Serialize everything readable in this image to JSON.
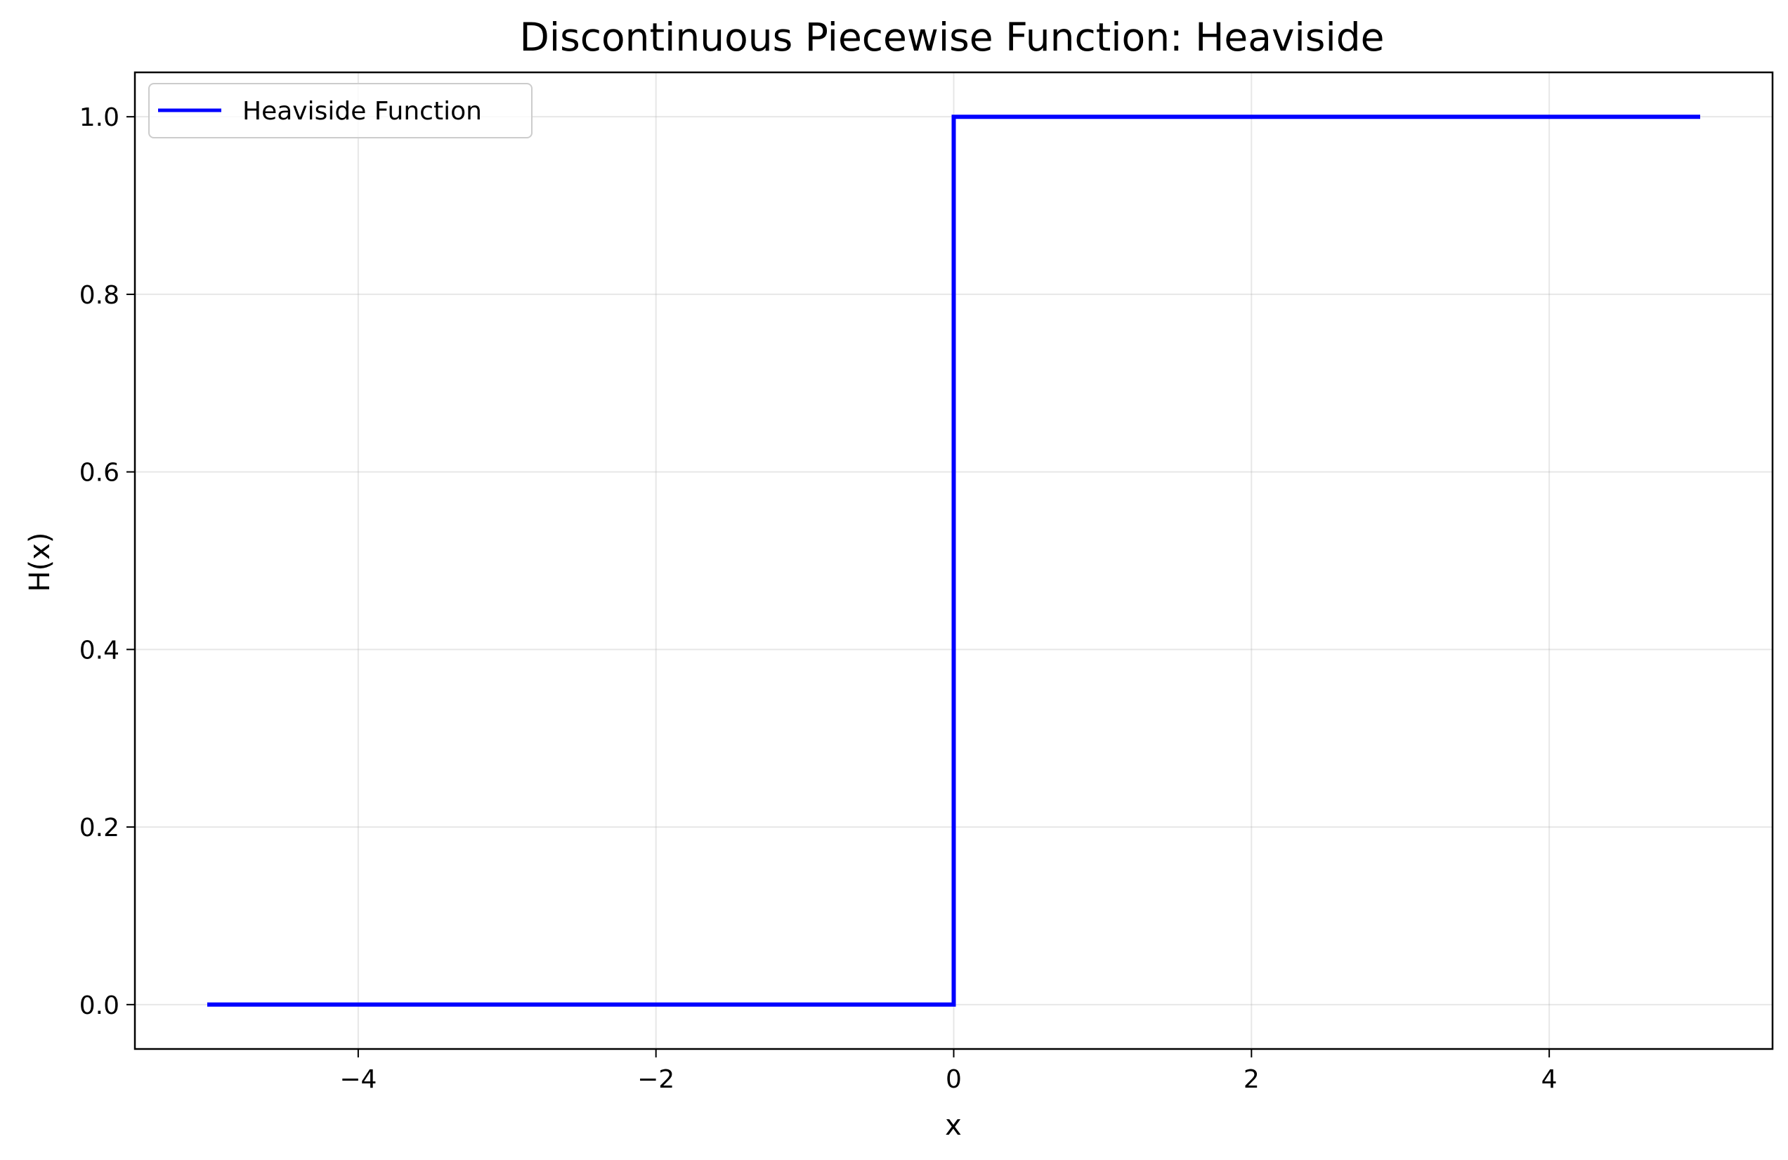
{
  "chart_data": {
    "type": "line",
    "title": "Discontinuous Piecewise Function: Heaviside",
    "xlabel": "x",
    "ylabel": "H(x)",
    "xlim": [
      -5.5,
      5.5
    ],
    "ylim": [
      -0.05,
      1.05
    ],
    "xticks": [
      -4,
      -2,
      0,
      2,
      4
    ],
    "xtick_labels": [
      "−4",
      "−2",
      "0",
      "2",
      "4"
    ],
    "yticks": [
      0.0,
      0.2,
      0.4,
      0.6,
      0.8,
      1.0
    ],
    "ytick_labels": [
      "0.0",
      "0.2",
      "0.4",
      "0.6",
      "0.8",
      "1.0"
    ],
    "grid": true,
    "legend_position": "upper left",
    "series": [
      {
        "name": "Heaviside Function",
        "color": "#0000ff",
        "x": [
          -5,
          0,
          0,
          5
        ],
        "y": [
          0,
          0,
          1,
          1
        ]
      }
    ]
  }
}
